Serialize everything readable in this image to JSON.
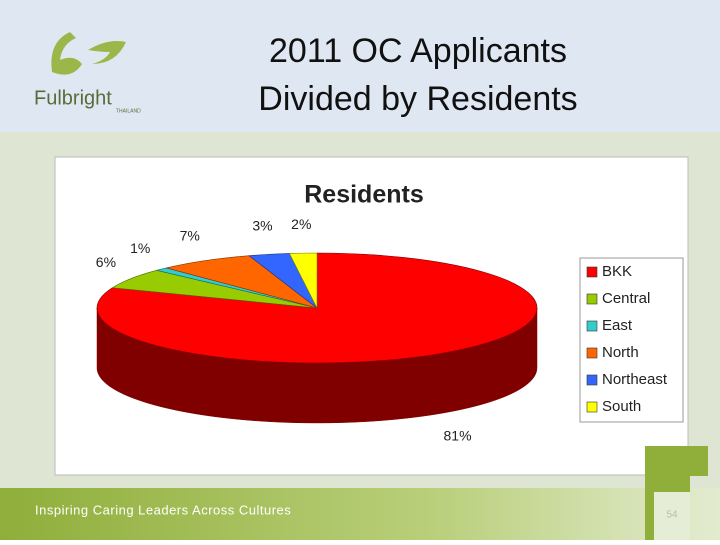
{
  "header": {
    "logo": {
      "name": "Fulbright",
      "country": "THAILAND"
    },
    "title": [
      "2011 OC Applicants",
      "Divided by Residents"
    ]
  },
  "chart_data": {
    "type": "pie",
    "title": "Residents",
    "categories": [
      "BKK",
      "Central",
      "East",
      "North",
      "Northeast",
      "South"
    ],
    "values": [
      81,
      6,
      1,
      7,
      3,
      2
    ],
    "value_labels": [
      "81%",
      "6%",
      "1%",
      "7%",
      "3%",
      "2%"
    ],
    "colors": [
      "#ff0000",
      "#99cc00",
      "#33cccc",
      "#ff6600",
      "#3366ff",
      "#ffff00"
    ],
    "legend": "right"
  },
  "footer": {
    "tagline": "Inspiring Caring Leaders Across Cultures",
    "page_number": "54"
  }
}
